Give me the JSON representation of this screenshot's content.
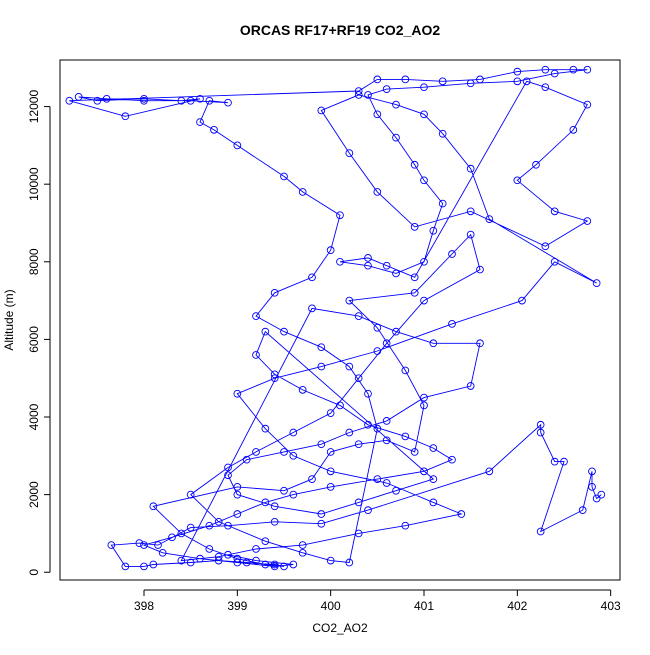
{
  "chart_data": {
    "type": "scatter",
    "title": "ORCAS RF17+RF19 CO2_AO2",
    "xlabel": "CO2_AO2",
    "ylabel": "Altitude (m)",
    "xlim": [
      397.1,
      403.1
    ],
    "ylim": [
      -200,
      13200
    ],
    "xticks": [
      398,
      399,
      400,
      401,
      402,
      403
    ],
    "yticks": [
      0,
      2000,
      4000,
      6000,
      8000,
      10000,
      12000
    ],
    "xtick_labels": [
      "398",
      "399",
      "400",
      "401",
      "402",
      "403"
    ],
    "ytick_labels": [
      "0",
      "2000",
      "4000",
      "6000",
      "8000",
      "10000",
      "12000"
    ],
    "grid": false,
    "legend": "none",
    "series": [
      {
        "color": "#0000ff",
        "marker": "open-circle",
        "line": true,
        "points": [
          [
            402.9,
            2000
          ],
          [
            402.85,
            1900
          ],
          [
            402.8,
            2200
          ],
          [
            402.8,
            2600
          ],
          [
            402.7,
            1600
          ],
          [
            402.25,
            1050
          ],
          [
            402.5,
            2850
          ],
          [
            402.4,
            2850
          ],
          [
            402.25,
            3600
          ],
          [
            402.25,
            3800
          ],
          [
            401.7,
            2600
          ],
          [
            400.4,
            1600
          ],
          [
            399.9,
            1250
          ],
          [
            399.4,
            1300
          ],
          [
            398.9,
            1200
          ],
          [
            398.5,
            1150
          ],
          [
            398.15,
            700
          ],
          [
            397.95,
            750
          ],
          [
            397.65,
            700
          ],
          [
            397.8,
            150
          ],
          [
            398.0,
            150
          ],
          [
            398.1,
            200
          ],
          [
            398.5,
            250
          ],
          [
            398.8,
            300
          ],
          [
            399.1,
            250
          ],
          [
            399.4,
            200
          ],
          [
            399.5,
            150
          ],
          [
            399.3,
            200
          ],
          [
            399.0,
            350
          ],
          [
            398.7,
            600
          ],
          [
            398.4,
            1000
          ],
          [
            398.1,
            1700
          ],
          [
            399.0,
            2200
          ],
          [
            399.5,
            2100
          ],
          [
            399.8,
            2400
          ],
          [
            400.0,
            3100
          ],
          [
            400.3,
            3300
          ],
          [
            400.6,
            3400
          ],
          [
            400.9,
            3100
          ],
          [
            401.0,
            4300
          ],
          [
            400.8,
            5200
          ],
          [
            400.5,
            6300
          ],
          [
            400.2,
            7000
          ],
          [
            400.9,
            7200
          ],
          [
            401.3,
            8200
          ],
          [
            401.5,
            8700
          ],
          [
            401.6,
            7800
          ],
          [
            401.0,
            7000
          ],
          [
            400.6,
            5900
          ],
          [
            400.3,
            5000
          ],
          [
            400.0,
            4100
          ],
          [
            399.6,
            3600
          ],
          [
            399.2,
            3100
          ],
          [
            398.9,
            2700
          ],
          [
            398.5,
            2000
          ],
          [
            398.8,
            1300
          ],
          [
            399.3,
            800
          ],
          [
            399.7,
            500
          ],
          [
            400.0,
            300
          ],
          [
            400.2,
            250
          ],
          [
            400.5,
            3700
          ],
          [
            400.4,
            4600
          ],
          [
            400.2,
            5300
          ],
          [
            399.9,
            5800
          ],
          [
            399.5,
            6200
          ],
          [
            399.2,
            6600
          ],
          [
            399.4,
            7200
          ],
          [
            399.8,
            7600
          ],
          [
            400.0,
            8300
          ],
          [
            400.1,
            9200
          ],
          [
            399.7,
            9800
          ],
          [
            399.5,
            10200
          ],
          [
            399.0,
            11000
          ],
          [
            398.75,
            11400
          ],
          [
            398.6,
            11600
          ],
          [
            398.7,
            12150
          ],
          [
            398.9,
            12100
          ],
          [
            398.5,
            12150
          ],
          [
            398.0,
            12150
          ],
          [
            397.6,
            12200
          ],
          [
            397.3,
            12250
          ],
          [
            397.5,
            12150
          ],
          [
            398.0,
            12200
          ],
          [
            398.4,
            12150
          ],
          [
            398.6,
            12200
          ],
          [
            397.8,
            11750
          ],
          [
            397.2,
            12150
          ],
          [
            400.3,
            12400
          ],
          [
            400.5,
            12700
          ],
          [
            400.8,
            12700
          ],
          [
            401.2,
            12650
          ],
          [
            401.6,
            12700
          ],
          [
            402.0,
            12900
          ],
          [
            402.3,
            12950
          ],
          [
            402.6,
            12950
          ],
          [
            402.75,
            12950
          ],
          [
            402.4,
            12850
          ],
          [
            402.0,
            12650
          ],
          [
            401.5,
            12600
          ],
          [
            401.0,
            12500
          ],
          [
            400.6,
            12450
          ],
          [
            400.4,
            12300
          ],
          [
            400.5,
            11800
          ],
          [
            400.7,
            11200
          ],
          [
            400.9,
            10500
          ],
          [
            401.0,
            10100
          ],
          [
            401.2,
            9500
          ],
          [
            401.1,
            8800
          ],
          [
            401.0,
            8000
          ],
          [
            400.7,
            7700
          ],
          [
            400.4,
            7900
          ],
          [
            400.1,
            8000
          ],
          [
            400.4,
            8100
          ],
          [
            400.6,
            7900
          ],
          [
            400.9,
            7600
          ],
          [
            402.1,
            12650
          ],
          [
            402.3,
            12500
          ],
          [
            402.75,
            12050
          ],
          [
            402.6,
            11400
          ],
          [
            402.2,
            10500
          ],
          [
            402.0,
            10100
          ],
          [
            402.4,
            9300
          ],
          [
            402.75,
            9050
          ],
          [
            402.3,
            8400
          ],
          [
            401.5,
            9300
          ],
          [
            400.9,
            8900
          ],
          [
            400.5,
            9800
          ],
          [
            400.2,
            10800
          ],
          [
            399.9,
            11900
          ],
          [
            400.3,
            12300
          ],
          [
            400.7,
            12050
          ],
          [
            401.0,
            11800
          ],
          [
            401.2,
            11300
          ],
          [
            401.5,
            10400
          ],
          [
            401.7,
            9100
          ],
          [
            402.85,
            7450
          ],
          [
            402.4,
            8000
          ],
          [
            402.05,
            7000
          ],
          [
            401.3,
            6400
          ],
          [
            400.5,
            5700
          ],
          [
            399.9,
            5300
          ],
          [
            399.4,
            5000
          ],
          [
            399.0,
            4600
          ],
          [
            399.3,
            3700
          ],
          [
            399.6,
            3000
          ],
          [
            400.0,
            2600
          ],
          [
            400.6,
            2300
          ],
          [
            401.1,
            1800
          ],
          [
            401.4,
            1500
          ],
          [
            400.8,
            1200
          ],
          [
            400.3,
            1000
          ],
          [
            399.7,
            700
          ],
          [
            399.2,
            600
          ],
          [
            398.8,
            400
          ],
          [
            398.4,
            300
          ],
          [
            399.8,
            6800
          ],
          [
            400.3,
            6600
          ],
          [
            400.7,
            6200
          ],
          [
            401.1,
            5900
          ],
          [
            401.6,
            5900
          ],
          [
            401.5,
            4800
          ],
          [
            401.0,
            4500
          ],
          [
            400.6,
            3900
          ],
          [
            400.2,
            3600
          ],
          [
            399.9,
            3300
          ],
          [
            399.5,
            3100
          ],
          [
            399.1,
            2900
          ],
          [
            398.9,
            2500
          ],
          [
            399.0,
            2000
          ],
          [
            399.4,
            1700
          ],
          [
            399.9,
            1500
          ],
          [
            400.3,
            1800
          ],
          [
            400.7,
            2100
          ],
          [
            401.1,
            2400
          ],
          [
            399.3,
            6200
          ],
          [
            399.2,
            5600
          ],
          [
            399.4,
            5100
          ],
          [
            399.7,
            4700
          ],
          [
            400.1,
            4300
          ],
          [
            400.4,
            3800
          ],
          [
            400.8,
            3500
          ],
          [
            401.1,
            3200
          ],
          [
            401.3,
            2900
          ],
          [
            401.0,
            2600
          ],
          [
            400.5,
            2400
          ],
          [
            400.0,
            2200
          ],
          [
            399.6,
            2000
          ],
          [
            399.3,
            1800
          ],
          [
            399.0,
            1500
          ],
          [
            398.7,
            1200
          ],
          [
            398.3,
            900
          ],
          [
            398.0,
            700
          ],
          [
            398.2,
            500
          ],
          [
            398.6,
            350
          ],
          [
            399.0,
            250
          ],
          [
            399.4,
            150
          ],
          [
            399.6,
            200
          ],
          [
            399.2,
            300
          ],
          [
            398.9,
            450
          ]
        ]
      }
    ]
  }
}
